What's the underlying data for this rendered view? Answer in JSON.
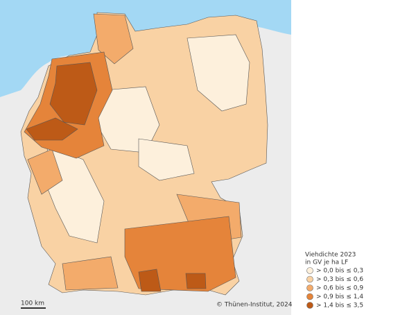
{
  "legend": {
    "title": [
      "Viehdichte 2023",
      "in GV je ha LF"
    ],
    "items": [
      {
        "label": "> 0,0 bis ≤ 0,3",
        "color": "#fdf0dc"
      },
      {
        "label": "> 0,3 bis ≤ 0,6",
        "color": "#f9d2a4"
      },
      {
        "label": "> 0,6 bis ≤ 0,9",
        "color": "#f3ab6b"
      },
      {
        "label": "> 0,9 bis ≤ 1,4",
        "color": "#e5843a"
      },
      {
        "label": "> 1,4 bis ≤ 3,5",
        "color": "#bd5a17"
      }
    ]
  },
  "scale_bar": "100 km",
  "credit": "© Thünen-Institut, 2024"
}
